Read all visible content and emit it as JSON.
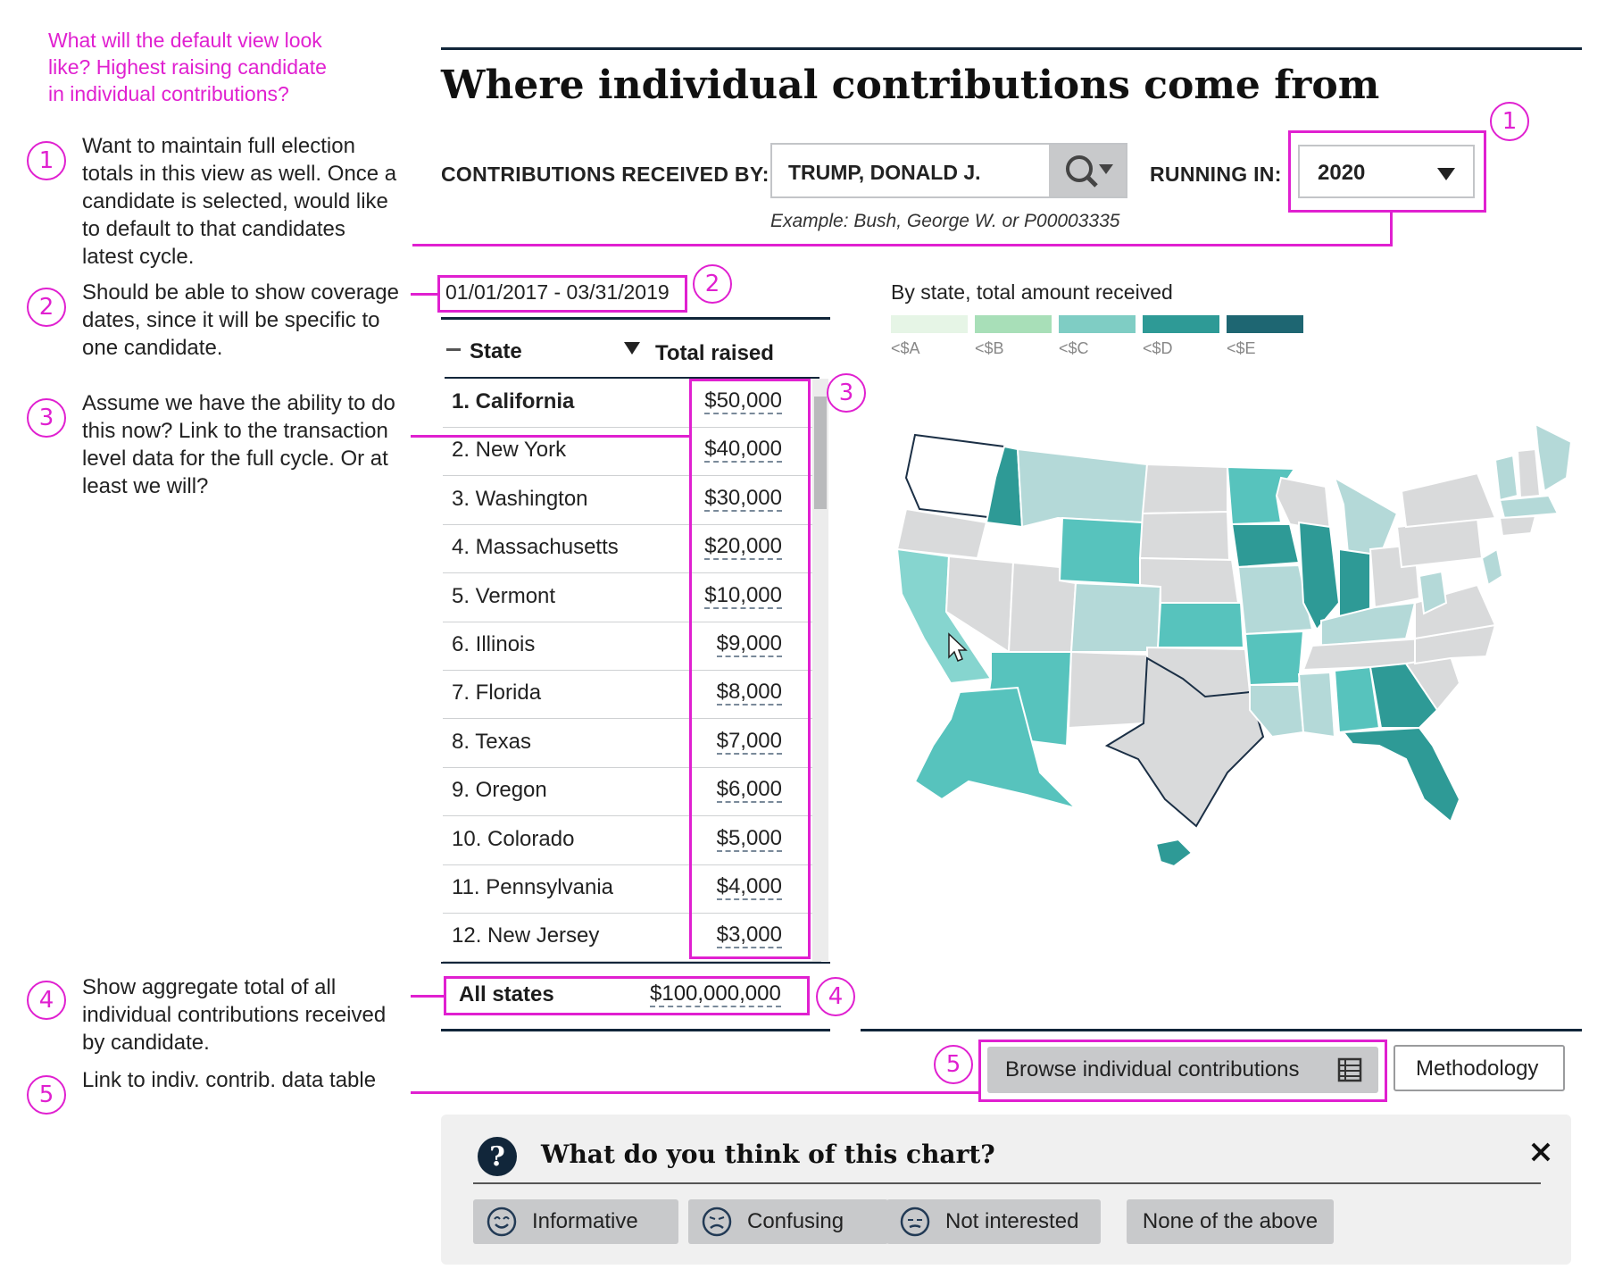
{
  "notes": {
    "top_question": [
      "What will the default view look",
      "like? Highest raising candidate",
      "in individual contributions?"
    ],
    "items": [
      {
        "num": "1",
        "lines": [
          "Want to maintain full election",
          "totals in this view as well. Once a",
          "candidate is selected, would like",
          "to default to that candidates",
          "latest cycle."
        ]
      },
      {
        "num": "2",
        "lines": [
          "Should be able to show coverage",
          "dates, since it will be specific to",
          "one candidate."
        ]
      },
      {
        "num": "3",
        "lines": [
          "Assume we have the ability to do",
          "this now? Link to the transaction",
          "level data for the full cycle. Or at",
          "least we will?"
        ]
      },
      {
        "num": "4",
        "lines": [
          "Show aggregate total of all",
          "individual contributions received",
          "by candidate."
        ]
      },
      {
        "num": "5",
        "lines": [
          "Link to indiv. contrib. data table"
        ]
      }
    ],
    "markers": {
      "one": "1",
      "two": "2",
      "three": "3",
      "four": "4",
      "five": "5"
    }
  },
  "header": {
    "title": "Where individual contributions come from",
    "received_by_label": "CONTRIBUTIONS RECEIVED BY:",
    "candidate_value": "TRUMP, DONALD J.",
    "running_in_label": "RUNNING IN:",
    "year_value": "2020",
    "example_text": "Example: Bush, George W. or P00003335"
  },
  "date_range": "01/01/2017 - 03/31/2019",
  "table": {
    "col_state": "State",
    "col_total": "Total raised",
    "rows": [
      {
        "state": "1.  California",
        "amount": "$50,000"
      },
      {
        "state": "2.  New York",
        "amount": "$40,000"
      },
      {
        "state": "3.  Washington",
        "amount": "$30,000"
      },
      {
        "state": "4.  Massachusetts",
        "amount": "$20,000"
      },
      {
        "state": "5.  Vermont",
        "amount": "$10,000"
      },
      {
        "state": "6.  Illinois",
        "amount": "$9,000"
      },
      {
        "state": "7.  Florida",
        "amount": "$8,000"
      },
      {
        "state": "8.  Texas",
        "amount": "$7,000"
      },
      {
        "state": "9.  Oregon",
        "amount": "$6,000"
      },
      {
        "state": "10. Colorado",
        "amount": "$5,000"
      },
      {
        "state": "11. Pennsylvania",
        "amount": "$4,000"
      },
      {
        "state": "12. New Jersey",
        "amount": "$3,000"
      }
    ],
    "total_label": "All states",
    "total_value": "$100,000,000"
  },
  "map": {
    "legend_title": "By state, total amount received",
    "legend": [
      {
        "label": "<$A",
        "color": "#e6f5e6"
      },
      {
        "label": "<$B",
        "color": "#a8dfb8"
      },
      {
        "label": "<$C",
        "color": "#7fcdc4"
      },
      {
        "label": "<$D",
        "color": "#2e9a96"
      },
      {
        "label": "<$E",
        "color": "#1e6672"
      }
    ]
  },
  "actions": {
    "browse_label": "Browse individual contributions",
    "methodology_label": "Methodology"
  },
  "feedback": {
    "question": "What do you think of this chart?",
    "options": [
      "Informative",
      "Confusing",
      "Not interested",
      "None of the above"
    ]
  }
}
